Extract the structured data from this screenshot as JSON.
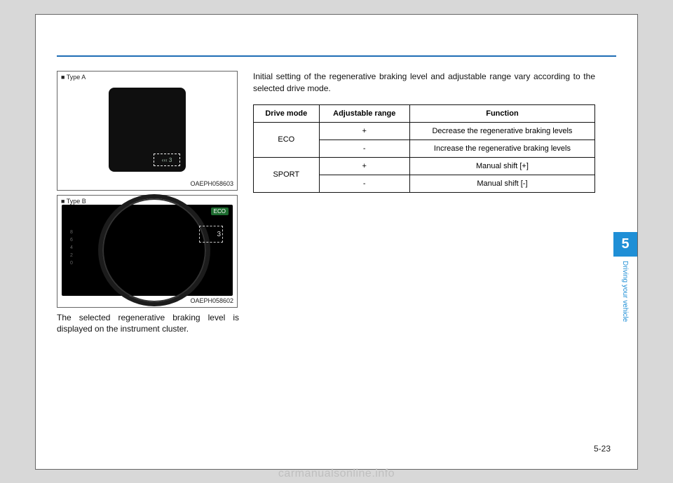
{
  "figures": {
    "typeA": {
      "label": "■ Type A",
      "highlight": "‹‹‹ 3",
      "caption": "OAEPH058603"
    },
    "typeB": {
      "label": "■ Type B",
      "eco": "ECO",
      "highlight": "3",
      "caption": "OAEPH058602"
    }
  },
  "left_body": "The selected regenerative braking level is displayed on the instrument cluster.",
  "intro": "Initial setting of the regenerative braking level and adjustable range vary according to the selected drive mode.",
  "table": {
    "headers": {
      "mode": "Drive mode",
      "range": "Adjustable range",
      "func": "Function"
    },
    "rows": [
      {
        "mode": "ECO",
        "range": "+",
        "func": "Decrease the regenerative braking levels"
      },
      {
        "mode": "",
        "range": "-",
        "func": "Increase the regenerative braking levels"
      },
      {
        "mode": "SPORT",
        "range": "+",
        "func": "Manual shift [+]"
      },
      {
        "mode": "",
        "range": "-",
        "func": "Manual shift [-]"
      }
    ]
  },
  "sidebar": {
    "chapter": "5",
    "title": "Driving your vehicle"
  },
  "page_number": "5-23",
  "watermark": "carmanualsonline.info"
}
